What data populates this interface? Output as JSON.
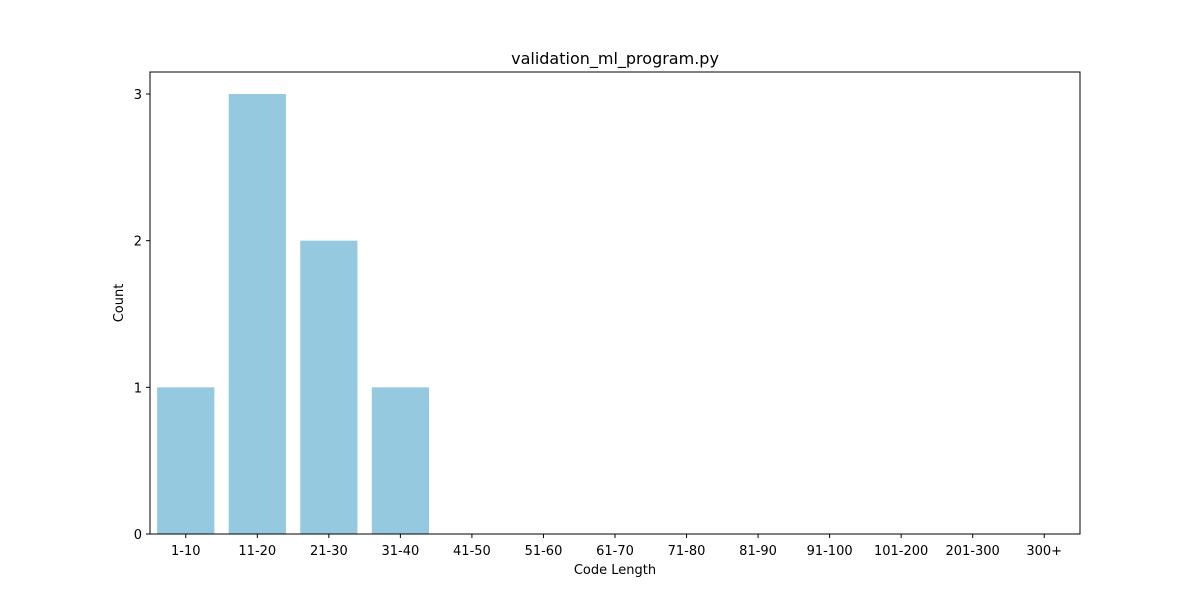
{
  "chart_data": {
    "type": "bar",
    "title": "validation_ml_program.py",
    "xlabel": "Code Length",
    "ylabel": "Count",
    "categories": [
      "1-10",
      "11-20",
      "21-30",
      "31-40",
      "41-50",
      "51-60",
      "61-70",
      "71-80",
      "81-90",
      "91-100",
      "101-200",
      "201-300",
      "300+"
    ],
    "values": [
      1,
      3,
      2,
      1,
      0,
      0,
      0,
      0,
      0,
      0,
      0,
      0,
      0
    ],
    "ylim": [
      0,
      3.15
    ],
    "yticks": [
      0,
      1,
      2,
      3
    ],
    "grid": false,
    "bar_color": "#95c9e0"
  }
}
